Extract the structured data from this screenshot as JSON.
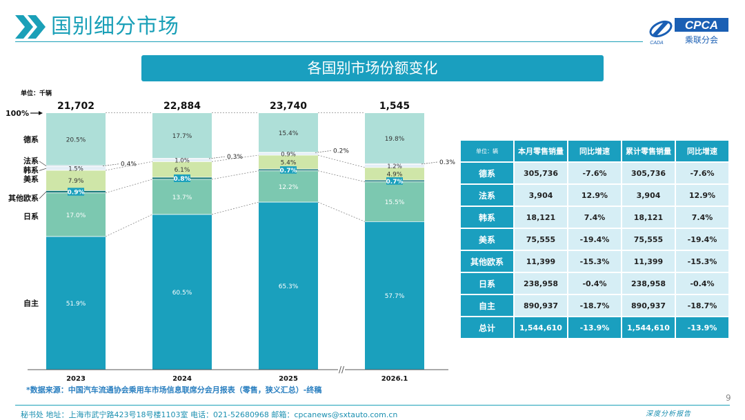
{
  "page_title": "国别细分市场",
  "logo": {
    "cpca": "CPCA",
    "chinese": "乘联分会",
    "small": "CADA"
  },
  "chart_title": "各国别市场份额变化",
  "chart_data": {
    "type": "bar",
    "stacked": "100%",
    "unit_label": "单位：千辆",
    "top_label": "100%",
    "categories": [
      "2023",
      "2024",
      "2025",
      "2026.1"
    ],
    "totals": [
      "21,702",
      "22,884",
      "23,740",
      "1,545"
    ],
    "series": [
      {
        "name": "自主",
        "color": "#1aa0bd",
        "values": [
          51.9,
          60.5,
          65.3,
          57.7
        ],
        "labels": [
          "51.9%",
          "60.5%",
          "65.3%",
          "57.7%"
        ]
      },
      {
        "name": "日系",
        "color": "#7cc8b0",
        "values": [
          17.0,
          13.7,
          12.2,
          15.5
        ],
        "labels": [
          "17.0%",
          "13.7%",
          "12.2%",
          "15.5%"
        ]
      },
      {
        "name": "其他欧系",
        "color": "#1a7a7a",
        "values": [
          0.9,
          0.8,
          0.7,
          0.7
        ],
        "labels": [
          "0.9%",
          "0.8%",
          "0.7%",
          "0.7%"
        ]
      },
      {
        "name": "美系",
        "color": "#cfe6a8",
        "values": [
          7.9,
          6.1,
          5.4,
          4.9
        ],
        "labels": [
          "7.9%",
          "6.1%",
          "5.4%",
          "4.9%"
        ]
      },
      {
        "name": "韩系",
        "color": "#e4eef6",
        "values": [
          1.5,
          1.0,
          0.9,
          1.2
        ],
        "labels": [
          "1.5%",
          "1.0%",
          "0.9%",
          "1.2%"
        ]
      },
      {
        "name": "法系",
        "color": "#cfd8e8",
        "values": [
          0.4,
          0.3,
          0.2,
          0.3
        ],
        "labels": [
          "0.4%",
          "0.3%",
          "0.2%",
          "0.3%"
        ]
      },
      {
        "name": "德系",
        "color": "#aedfd8",
        "values": [
          20.5,
          17.7,
          15.4,
          19.8
        ],
        "labels": [
          "20.5%",
          "17.7%",
          "15.4%",
          "19.8%"
        ]
      }
    ],
    "axis_break": "//"
  },
  "table": {
    "headers": [
      "单位：辆",
      "本月零售销量",
      "同比增速",
      "累计零售销量",
      "同比增速"
    ],
    "rows": [
      {
        "label": "德系",
        "cells": [
          "305,736",
          "-7.6%",
          "305,736",
          "-7.6%"
        ]
      },
      {
        "label": "法系",
        "cells": [
          "3,904",
          "12.9%",
          "3,904",
          "12.9%"
        ]
      },
      {
        "label": "韩系",
        "cells": [
          "18,121",
          "7.4%",
          "18,121",
          "7.4%"
        ]
      },
      {
        "label": "美系",
        "cells": [
          "75,555",
          "-19.4%",
          "75,555",
          "-19.4%"
        ]
      },
      {
        "label": "其他欧系",
        "cells": [
          "11,399",
          "-15.3%",
          "11,399",
          "-15.3%"
        ]
      },
      {
        "label": "日系",
        "cells": [
          "238,958",
          "-0.4%",
          "238,958",
          "-0.4%"
        ]
      },
      {
        "label": "自主",
        "cells": [
          "890,937",
          "-18.7%",
          "890,937",
          "-18.7%"
        ]
      }
    ],
    "total": {
      "label": "总计",
      "cells": [
        "1,544,610",
        "-13.9%",
        "1,544,610",
        "-13.9%"
      ]
    }
  },
  "source": "*数据来源：中国汽车流通协会乘用车市场信息联席分会月报表（零售，狭义汇总）-终稿",
  "footer": "秘书处   地址：上海市武宁路423号18号楼1103室   电话：021-52680968   邮箱：cpcanews@sxtauto.com.cn",
  "page_number": "9",
  "report_label": "深度分析报告"
}
